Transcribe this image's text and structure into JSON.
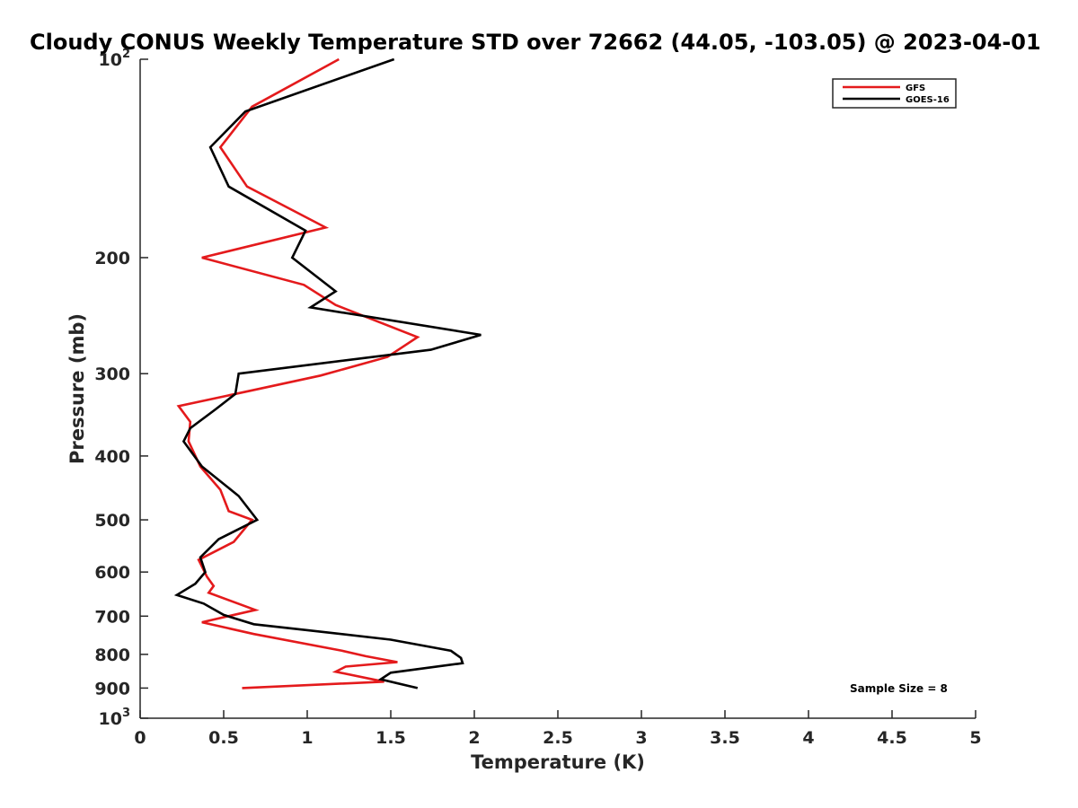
{
  "chart_data": {
    "type": "line",
    "title": "Cloudy CONUS Weekly Temperature STD over 72662 (44.05, -103.05) @ 2023-04-01",
    "xlabel": "Temperature (K)",
    "ylabel": "Pressure (mb)",
    "xlim": [
      0,
      5
    ],
    "ylim": [
      100,
      1000
    ],
    "y_scale": "log",
    "y_reversed": true,
    "x_ticks": [
      "0",
      "0.5",
      "1",
      "1.5",
      "2",
      "2.5",
      "3",
      "3.5",
      "4",
      "4.5",
      "5"
    ],
    "y_ticks": [
      {
        "value": 100,
        "base": "10",
        "exp": "2"
      },
      {
        "value": 200,
        "label": "200"
      },
      {
        "value": 300,
        "label": "300"
      },
      {
        "value": 400,
        "label": "400"
      },
      {
        "value": 500,
        "label": "500"
      },
      {
        "value": 600,
        "label": "600"
      },
      {
        "value": 700,
        "label": "700"
      },
      {
        "value": 800,
        "label": "800"
      },
      {
        "value": 900,
        "label": "900"
      },
      {
        "value": 1000,
        "base": "10",
        "exp": "3"
      }
    ],
    "legend": {
      "position": "top-right",
      "entries": [
        "GFS",
        "GOES-16"
      ]
    },
    "annotation": "Sample Size = 8",
    "grid": false,
    "series": [
      {
        "name": "GFS",
        "color": "#e41a1c",
        "points": [
          {
            "x": 1.19,
            "y": 100
          },
          {
            "x": 0.67,
            "y": 118
          },
          {
            "x": 0.48,
            "y": 136
          },
          {
            "x": 0.64,
            "y": 156
          },
          {
            "x": 1.11,
            "y": 180
          },
          {
            "x": 0.37,
            "y": 200
          },
          {
            "x": 0.98,
            "y": 220
          },
          {
            "x": 1.17,
            "y": 236
          },
          {
            "x": 1.66,
            "y": 264
          },
          {
            "x": 1.48,
            "y": 283
          },
          {
            "x": 1.08,
            "y": 302
          },
          {
            "x": 0.67,
            "y": 318
          },
          {
            "x": 0.23,
            "y": 336
          },
          {
            "x": 0.3,
            "y": 355
          },
          {
            "x": 0.29,
            "y": 380
          },
          {
            "x": 0.36,
            "y": 415
          },
          {
            "x": 0.48,
            "y": 450
          },
          {
            "x": 0.53,
            "y": 485
          },
          {
            "x": 0.67,
            "y": 500
          },
          {
            "x": 0.56,
            "y": 540
          },
          {
            "x": 0.35,
            "y": 575
          },
          {
            "x": 0.4,
            "y": 610
          },
          {
            "x": 0.44,
            "y": 630
          },
          {
            "x": 0.41,
            "y": 645
          },
          {
            "x": 0.69,
            "y": 685
          },
          {
            "x": 0.37,
            "y": 715
          },
          {
            "x": 0.68,
            "y": 745
          },
          {
            "x": 1.21,
            "y": 790
          },
          {
            "x": 1.35,
            "y": 805
          },
          {
            "x": 1.54,
            "y": 822
          },
          {
            "x": 1.23,
            "y": 835
          },
          {
            "x": 1.17,
            "y": 850
          },
          {
            "x": 1.46,
            "y": 880
          },
          {
            "x": 0.61,
            "y": 900
          }
        ]
      },
      {
        "name": "GOES-16",
        "color": "#000000",
        "points": [
          {
            "x": 1.52,
            "y": 100
          },
          {
            "x": 0.63,
            "y": 120
          },
          {
            "x": 0.42,
            "y": 136
          },
          {
            "x": 0.53,
            "y": 156
          },
          {
            "x": 0.99,
            "y": 182
          },
          {
            "x": 0.91,
            "y": 200
          },
          {
            "x": 1.17,
            "y": 225
          },
          {
            "x": 1.02,
            "y": 238
          },
          {
            "x": 2.04,
            "y": 262
          },
          {
            "x": 1.74,
            "y": 276
          },
          {
            "x": 0.59,
            "y": 300
          },
          {
            "x": 0.57,
            "y": 322
          },
          {
            "x": 0.45,
            "y": 340
          },
          {
            "x": 0.3,
            "y": 363
          },
          {
            "x": 0.26,
            "y": 380
          },
          {
            "x": 0.37,
            "y": 415
          },
          {
            "x": 0.59,
            "y": 460
          },
          {
            "x": 0.7,
            "y": 500
          },
          {
            "x": 0.47,
            "y": 535
          },
          {
            "x": 0.36,
            "y": 570
          },
          {
            "x": 0.39,
            "y": 600
          },
          {
            "x": 0.33,
            "y": 625
          },
          {
            "x": 0.22,
            "y": 650
          },
          {
            "x": 0.38,
            "y": 670
          },
          {
            "x": 0.5,
            "y": 697
          },
          {
            "x": 0.68,
            "y": 720
          },
          {
            "x": 1.0,
            "y": 735
          },
          {
            "x": 1.5,
            "y": 760
          },
          {
            "x": 1.86,
            "y": 790
          },
          {
            "x": 1.92,
            "y": 810
          },
          {
            "x": 1.93,
            "y": 825
          },
          {
            "x": 1.5,
            "y": 853
          },
          {
            "x": 1.44,
            "y": 873
          },
          {
            "x": 1.66,
            "y": 900
          }
        ]
      }
    ]
  }
}
